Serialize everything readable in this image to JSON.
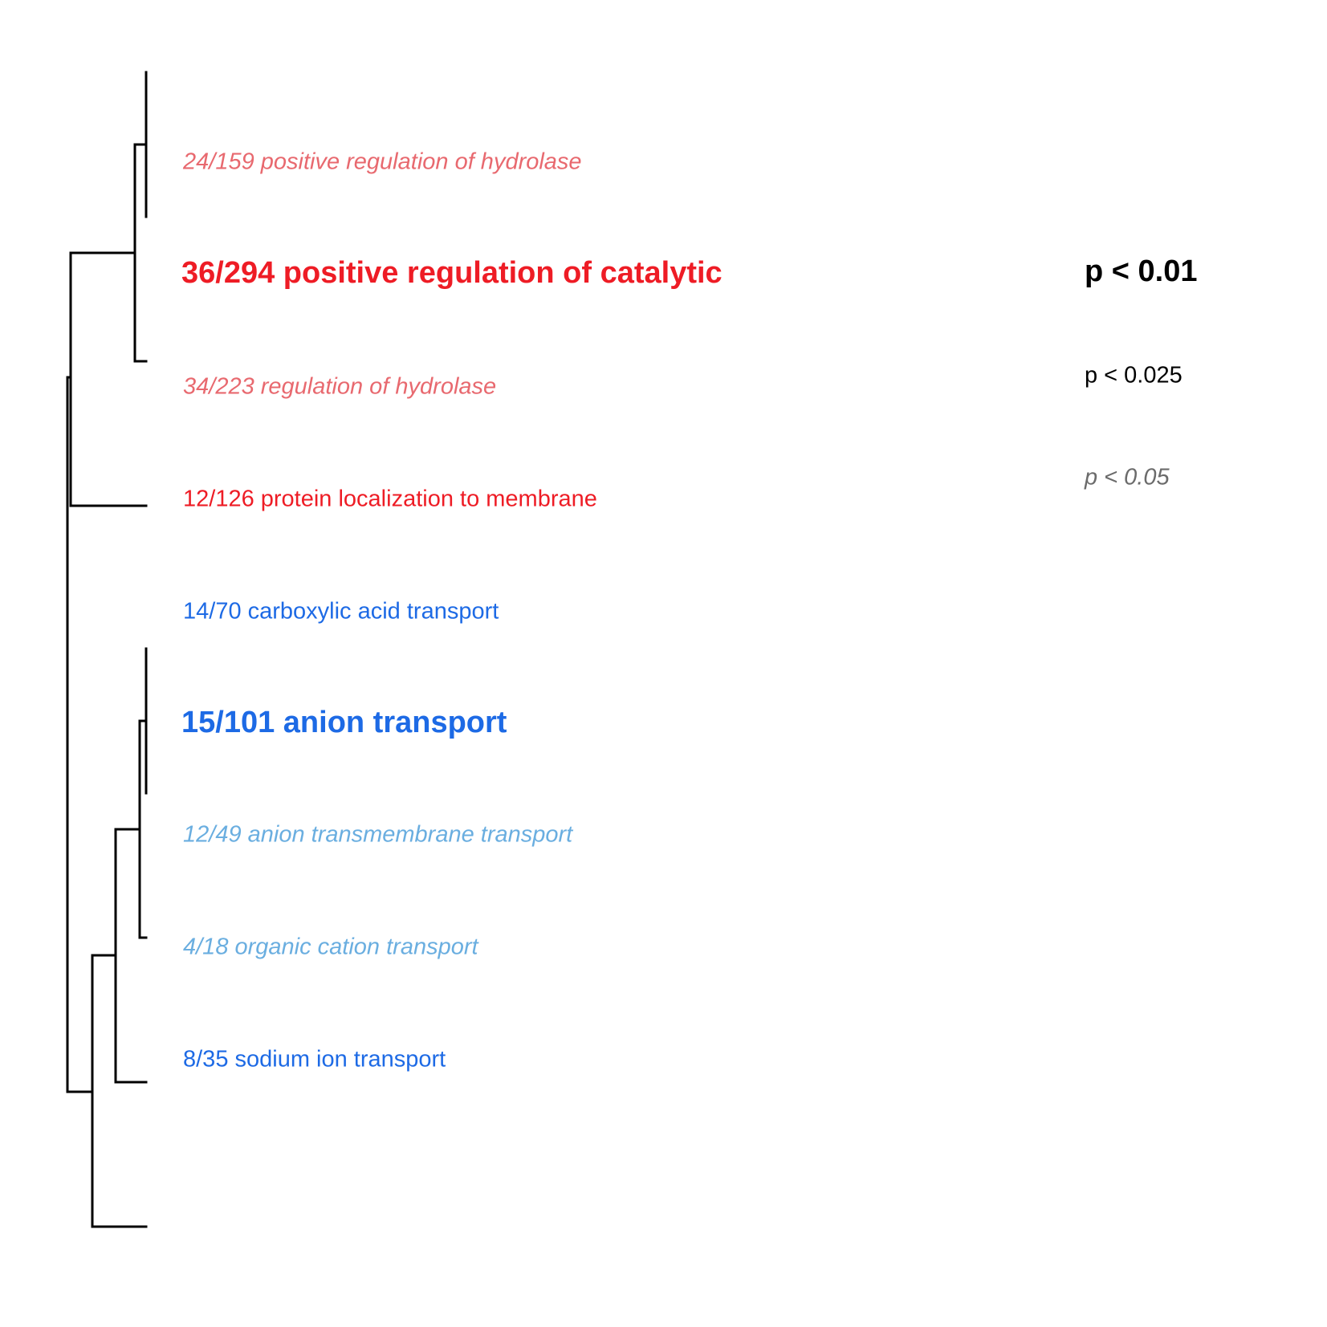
{
  "colors": {
    "tree_line": "#000000",
    "up_strong": "#ee1c25",
    "up_light": "#e8696f",
    "down_strong": "#1d6ae5",
    "down_light": "#6aaee0",
    "legend_strong": "#000000",
    "legend_light": "#6b6b6b"
  },
  "terms": [
    {
      "label": "24/159 positive regulation of hydrolase",
      "color": "#e8696f",
      "style": "light-italic"
    },
    {
      "label": "36/294 positive regulation of catalytic",
      "color": "#ee1c25",
      "style": "bold-large"
    },
    {
      "label": "34/223 regulation of hydrolase",
      "color": "#e8696f",
      "style": "light-italic"
    },
    {
      "label": "12/126 protein localization to membrane",
      "color": "#ee1c25",
      "style": "regular"
    },
    {
      "label": "14/70 carboxylic acid transport",
      "color": "#1d6ae5",
      "style": "regular"
    },
    {
      "label": "15/101 anion transport",
      "color": "#1d6ae5",
      "style": "bold-large"
    },
    {
      "label": "12/49 anion transmembrane transport",
      "color": "#6aaee0",
      "style": "light-italic"
    },
    {
      "label": "4/18 organic cation transport",
      "color": "#6aaee0",
      "style": "light-italic"
    },
    {
      "label": "8/35 sodium ion transport",
      "color": "#1d6ae5",
      "style": "regular"
    }
  ],
  "legend": [
    {
      "label": "p < 0.01",
      "color": "#000000",
      "style": "bold-large"
    },
    {
      "label": "p < 0.025",
      "color": "#000000",
      "style": "regular"
    },
    {
      "label": "p < 0.05",
      "color": "#6b6b6b",
      "style": "light-italic"
    }
  ]
}
